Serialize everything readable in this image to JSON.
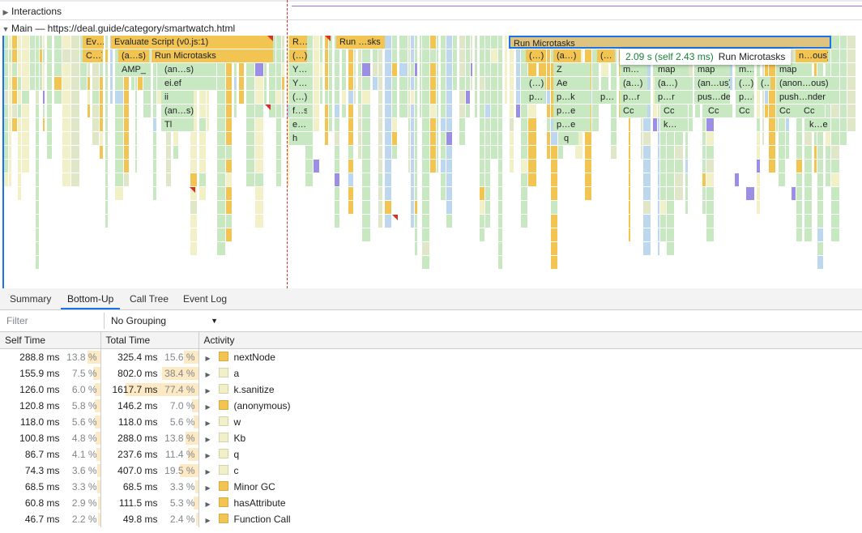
{
  "colors": {
    "scripting": "#f2c552",
    "scripting_light": "#f1f0c7",
    "rendering": "#c7e8c0",
    "painting": "#bcd7ee",
    "system": "#d9d9d9",
    "gc": "#9b8ee5",
    "accent": "#1a73e8"
  },
  "timeline": {
    "interactions_label": "Interactions",
    "main_label": "Main — https://deal.guide/category/smartwatch.html",
    "blocks": [
      {
        "label": "Ev…",
        "depth": 0
      },
      {
        "label": "Evaluate Script (v0.js:1)",
        "depth": 0
      },
      {
        "label": "R…s",
        "depth": 0
      },
      {
        "label": "Run …sks",
        "depth": 0
      },
      {
        "label": "Run Microtasks",
        "depth": 0
      },
      {
        "label": "C…)",
        "depth": 1
      },
      {
        "label": "(a…s)",
        "depth": 1
      },
      {
        "label": "Run Microtasks",
        "depth": 1
      },
      {
        "label": "(…)",
        "depth": 1
      },
      {
        "label": "(…)",
        "depth": 1
      },
      {
        "label": "(a…)",
        "depth": 1
      },
      {
        "label": "(…",
        "depth": 1
      },
      {
        "label": "n…ous)",
        "depth": 1
      },
      {
        "label": "AMP_",
        "depth": 2
      },
      {
        "label": "(an…s)",
        "depth": 2
      },
      {
        "label": "Y…",
        "depth": 2
      },
      {
        "label": "Z",
        "depth": 2
      },
      {
        "label": "m…",
        "depth": 2
      },
      {
        "label": "map",
        "depth": 2
      },
      {
        "label": "map",
        "depth": 2
      },
      {
        "label": "m…",
        "depth": 2
      },
      {
        "label": "map",
        "depth": 2
      },
      {
        "label": "ei.ef",
        "depth": 3
      },
      {
        "label": "Y…",
        "depth": 3
      },
      {
        "label": "(…)",
        "depth": 3
      },
      {
        "label": "Ae",
        "depth": 3
      },
      {
        "label": "(a…)",
        "depth": 3
      },
      {
        "label": "(a…)",
        "depth": 3
      },
      {
        "label": "(an…us)",
        "depth": 3
      },
      {
        "label": "(…)",
        "depth": 3
      },
      {
        "label": "(…",
        "depth": 3
      },
      {
        "label": "(anon…ous)",
        "depth": 3
      },
      {
        "label": "ii",
        "depth": 4
      },
      {
        "label": "(…)",
        "depth": 4
      },
      {
        "label": "p…",
        "depth": 4
      },
      {
        "label": "p…k",
        "depth": 4
      },
      {
        "label": "p…",
        "depth": 4
      },
      {
        "label": "p…r",
        "depth": 4
      },
      {
        "label": "p…r",
        "depth": 4
      },
      {
        "label": "pus…der",
        "depth": 4
      },
      {
        "label": "p…r",
        "depth": 4
      },
      {
        "label": "push…nder",
        "depth": 4
      },
      {
        "label": "(an…s)",
        "depth": 5
      },
      {
        "label": "f…s",
        "depth": 5
      },
      {
        "label": "p…e",
        "depth": 5
      },
      {
        "label": "Cc",
        "depth": 5
      },
      {
        "label": "Cc",
        "depth": 5
      },
      {
        "label": "Cc",
        "depth": 5
      },
      {
        "label": "Cc",
        "depth": 5
      },
      {
        "label": "Cc",
        "depth": 5
      },
      {
        "label": "Cc",
        "depth": 5
      },
      {
        "label": "Tl",
        "depth": 6
      },
      {
        "label": "e…",
        "depth": 6
      },
      {
        "label": "p…e",
        "depth": 6
      },
      {
        "label": "k…",
        "depth": 6
      },
      {
        "label": "k…e",
        "depth": 6
      },
      {
        "label": "h",
        "depth": 7
      },
      {
        "label": "q",
        "depth": 7
      }
    ],
    "tooltip": {
      "time": "2.09 s (self 2.43 ms)",
      "name": "Run Microtasks"
    }
  },
  "tabs": [
    "Summary",
    "Bottom-Up",
    "Call Tree",
    "Event Log"
  ],
  "active_tab": "Bottom-Up",
  "filter": {
    "placeholder": "Filter",
    "value": ""
  },
  "grouping": {
    "selected": "No Grouping"
  },
  "columns": {
    "self": "Self Time",
    "total": "Total Time",
    "activity": "Activity"
  },
  "rows": [
    {
      "self_ms": "288.8 ms",
      "self_pct": "13.8 %",
      "self_frac": 13.8,
      "total_ms": "325.4 ms",
      "total_pct": "15.6 %",
      "total_frac": 15.6,
      "activity": "nextNode",
      "category": "scripting"
    },
    {
      "self_ms": "155.9 ms",
      "self_pct": "7.5 %",
      "self_frac": 7.5,
      "total_ms": "802.0 ms",
      "total_pct": "38.4 %",
      "total_frac": 38.4,
      "activity": "a",
      "category": "scripting_light"
    },
    {
      "self_ms": "126.0 ms",
      "self_pct": "6.0 %",
      "self_frac": 6.0,
      "total_ms": "1617.7 ms",
      "total_pct": "77.4 %",
      "total_frac": 77.4,
      "activity": "k.sanitize",
      "category": "scripting_light"
    },
    {
      "self_ms": "120.8 ms",
      "self_pct": "5.8 %",
      "self_frac": 5.8,
      "total_ms": "146.2 ms",
      "total_pct": "7.0 %",
      "total_frac": 7.0,
      "activity": "(anonymous)",
      "category": "scripting"
    },
    {
      "self_ms": "118.0 ms",
      "self_pct": "5.6 %",
      "self_frac": 5.6,
      "total_ms": "118.0 ms",
      "total_pct": "5.6 %",
      "total_frac": 5.6,
      "activity": "w",
      "category": "scripting_light"
    },
    {
      "self_ms": "100.8 ms",
      "self_pct": "4.8 %",
      "self_frac": 4.8,
      "total_ms": "288.0 ms",
      "total_pct": "13.8 %",
      "total_frac": 13.8,
      "activity": "Kb",
      "category": "scripting_light"
    },
    {
      "self_ms": "86.7 ms",
      "self_pct": "4.1 %",
      "self_frac": 4.1,
      "total_ms": "237.6 ms",
      "total_pct": "11.4 %",
      "total_frac": 11.4,
      "activity": "q",
      "category": "scripting_light"
    },
    {
      "self_ms": "74.3 ms",
      "self_pct": "3.6 %",
      "self_frac": 3.6,
      "total_ms": "407.0 ms",
      "total_pct": "19.5 %",
      "total_frac": 19.5,
      "activity": "c",
      "category": "scripting_light"
    },
    {
      "self_ms": "68.5 ms",
      "self_pct": "3.3 %",
      "self_frac": 3.3,
      "total_ms": "68.5 ms",
      "total_pct": "3.3 %",
      "total_frac": 3.3,
      "activity": "Minor GC",
      "category": "scripting"
    },
    {
      "self_ms": "60.8 ms",
      "self_pct": "2.9 %",
      "self_frac": 2.9,
      "total_ms": "111.5 ms",
      "total_pct": "5.3 %",
      "total_frac": 5.3,
      "activity": "hasAttribute",
      "category": "scripting"
    },
    {
      "self_ms": "46.7 ms",
      "self_pct": "2.2 %",
      "self_frac": 2.2,
      "total_ms": "49.8 ms",
      "total_pct": "2.4 %",
      "total_frac": 2.4,
      "activity": "Function Call",
      "category": "scripting"
    }
  ]
}
